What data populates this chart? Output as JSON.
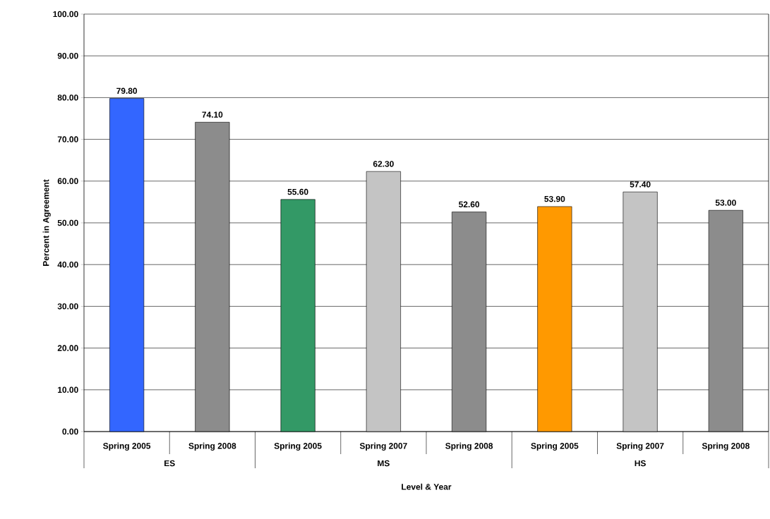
{
  "chart_data": {
    "type": "bar",
    "xlabel": "Level & Year",
    "ylabel": "Percent in Agreement",
    "categories": [
      "Spring 2005",
      "Spring 2008",
      "Spring 2005",
      "Spring 2007",
      "Spring 2008",
      "Spring 2005",
      "Spring 2007",
      "Spring 2008"
    ],
    "values": [
      79.8,
      74.1,
      55.6,
      62.3,
      52.6,
      53.9,
      57.4,
      53.0
    ],
    "colors": [
      "#3366ff",
      "#8c8c8c",
      "#339966",
      "#c4c4c4",
      "#8c8c8c",
      "#ff9900",
      "#c4c4c4",
      "#8c8c8c"
    ],
    "value_labels": [
      "79.80",
      "74.10",
      "55.60",
      "62.30",
      "52.60",
      "53.90",
      "57.40",
      "53.00"
    ],
    "ylim": [
      0,
      100
    ],
    "yticks": [
      {
        "value": 0,
        "label": "0.00"
      },
      {
        "value": 10,
        "label": "10.00"
      },
      {
        "value": 20,
        "label": "20.00"
      },
      {
        "value": 30,
        "label": "30.00"
      },
      {
        "value": 40,
        "label": "40.00"
      },
      {
        "value": 50,
        "label": "50.00"
      },
      {
        "value": 60,
        "label": "60.00"
      },
      {
        "value": 70,
        "label": "70.00"
      },
      {
        "value": 80,
        "label": "80.00"
      },
      {
        "value": 90,
        "label": "90.00"
      },
      {
        "value": 100,
        "label": "100.00"
      }
    ],
    "grid": "y",
    "annotations": [
      "ES",
      "MS",
      "HS"
    ]
  }
}
